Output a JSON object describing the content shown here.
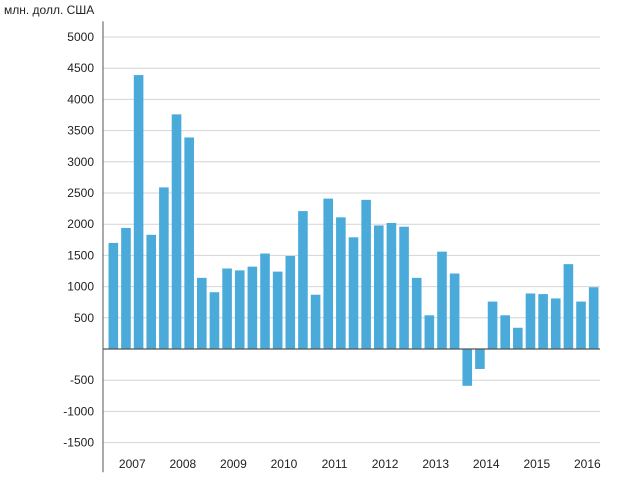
{
  "chart_data": {
    "type": "bar",
    "ylabel": "млн. долл. США",
    "ylim": [
      -1750,
      5250
    ],
    "yticks": [
      5000,
      4500,
      4000,
      3500,
      3000,
      2500,
      2000,
      1500,
      1000,
      500,
      -500,
      -1000,
      -1500
    ],
    "grid": true,
    "bar_color": "#4aabdb",
    "grid_color": "#d4d4d4",
    "axis_color": "#555555",
    "years": [
      "2007",
      "2008",
      "2009",
      "2010",
      "2011",
      "2012",
      "2013",
      "2014",
      "2015",
      "2016"
    ],
    "year_label_slots": [
      1.5,
      5.5,
      9.5,
      13.5,
      17.5,
      21.5,
      25.5,
      29.5,
      33.5,
      37.5
    ],
    "values": [
      1700,
      1940,
      4390,
      1830,
      2590,
      3760,
      3390,
      1140,
      910,
      1290,
      1260,
      1320,
      1530,
      1240,
      1490,
      2210,
      870,
      2410,
      2110,
      1790,
      2390,
      1980,
      2020,
      1960,
      1140,
      540,
      1560,
      1210,
      -590,
      -320,
      760,
      540,
      340,
      890,
      880,
      810,
      1360,
      760,
      990
    ]
  }
}
